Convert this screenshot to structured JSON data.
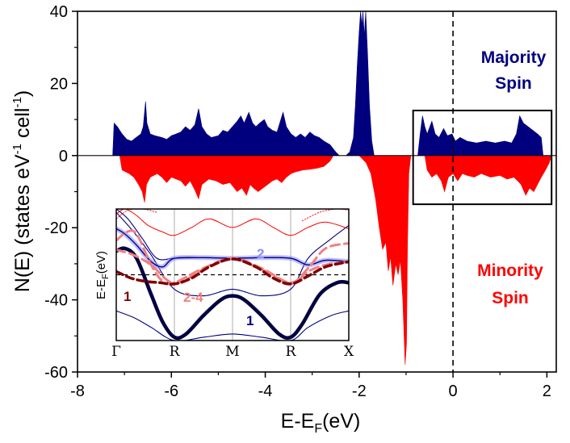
{
  "chart_data": {
    "type": "area",
    "xlabel": "E-E",
    "xlabel_sub": "F",
    "xlabel_tail": "(eV)",
    "ylabel_main": "N(E) (states eV",
    "ylabel_sup1": "-1",
    "ylabel_mid": " cell",
    "ylabel_sup2": "-1",
    "ylabel_tail": ")",
    "xlim": [
      -8,
      2.2
    ],
    "ylim": [
      -60,
      40
    ],
    "x_ticks": [
      -8,
      -6,
      -4,
      -2,
      0,
      2
    ],
    "x_tick_labels": [
      "-8",
      "-6",
      "-4",
      "-2",
      "0",
      "2"
    ],
    "y_ticks": [
      -60,
      -40,
      -20,
      0,
      20,
      40
    ],
    "y_tick_labels": [
      "-60",
      "-40",
      "-20",
      "0",
      "20",
      "40"
    ],
    "fermi_line_x": 0,
    "highlight_box": {
      "x": [
        -0.85,
        2.1
      ],
      "y": [
        -13.5,
        12.5
      ]
    },
    "annotations": {
      "majority_line1": "Majority",
      "majority_line2": "Spin",
      "minority_line1": "Minority",
      "minority_line2": "Spin"
    },
    "colors": {
      "majority": "#00007f",
      "minority": "#ff0000",
      "inset_light_blue": "#8a8aff",
      "inset_light_red": "#f08080",
      "inset_dark_red": "#7f0000"
    },
    "series": [
      {
        "name": "Majority Spin",
        "points": [
          [
            -8.0,
            0
          ],
          [
            -7.25,
            0
          ],
          [
            -7.22,
            9
          ],
          [
            -7.15,
            8
          ],
          [
            -7.05,
            6
          ],
          [
            -6.95,
            4.5
          ],
          [
            -6.85,
            4
          ],
          [
            -6.75,
            5
          ],
          [
            -6.65,
            6
          ],
          [
            -6.6,
            8
          ],
          [
            -6.55,
            15
          ],
          [
            -6.52,
            9
          ],
          [
            -6.45,
            6
          ],
          [
            -6.35,
            5.5
          ],
          [
            -6.2,
            5
          ],
          [
            -6.1,
            4.5
          ],
          [
            -6.0,
            5.5
          ],
          [
            -5.9,
            6
          ],
          [
            -5.8,
            6.5
          ],
          [
            -5.7,
            8
          ],
          [
            -5.6,
            7
          ],
          [
            -5.5,
            8.5
          ],
          [
            -5.42,
            13
          ],
          [
            -5.35,
            8
          ],
          [
            -5.25,
            6
          ],
          [
            -5.15,
            5
          ],
          [
            -5.0,
            5.5
          ],
          [
            -4.9,
            7
          ],
          [
            -4.8,
            6.5
          ],
          [
            -4.7,
            8
          ],
          [
            -4.6,
            9.5
          ],
          [
            -4.52,
            11
          ],
          [
            -4.45,
            9
          ],
          [
            -4.35,
            12
          ],
          [
            -4.27,
            9
          ],
          [
            -4.2,
            8
          ],
          [
            -4.12,
            9
          ],
          [
            -4.02,
            10
          ],
          [
            -3.95,
            8
          ],
          [
            -3.85,
            7
          ],
          [
            -3.75,
            6.5
          ],
          [
            -3.62,
            12
          ],
          [
            -3.55,
            8
          ],
          [
            -3.45,
            6
          ],
          [
            -3.35,
            5
          ],
          [
            -3.25,
            6
          ],
          [
            -3.15,
            5
          ],
          [
            -3.05,
            6.5
          ],
          [
            -2.95,
            5.5
          ],
          [
            -2.85,
            5
          ],
          [
            -2.75,
            4
          ],
          [
            -2.62,
            3
          ],
          [
            -2.5,
            1
          ],
          [
            -2.42,
            0
          ],
          [
            -2.28,
            0
          ],
          [
            -2.2,
            1
          ],
          [
            -2.12,
            5
          ],
          [
            -2.08,
            14
          ],
          [
            -2.04,
            25
          ],
          [
            -2.0,
            34
          ],
          [
            -1.97,
            40
          ],
          [
            -1.94,
            36
          ],
          [
            -1.92,
            40
          ],
          [
            -1.89,
            33
          ],
          [
            -1.86,
            40
          ],
          [
            -1.82,
            28
          ],
          [
            -1.78,
            14
          ],
          [
            -1.73,
            4
          ],
          [
            -1.68,
            0
          ],
          [
            -0.75,
            0
          ],
          [
            -0.7,
            6
          ],
          [
            -0.65,
            11
          ],
          [
            -0.6,
            8
          ],
          [
            -0.55,
            6
          ],
          [
            -0.45,
            9.5
          ],
          [
            -0.38,
            6
          ],
          [
            -0.3,
            5
          ],
          [
            -0.2,
            7.5
          ],
          [
            -0.12,
            5.5
          ],
          [
            -0.02,
            6
          ],
          [
            0.05,
            4
          ],
          [
            0.15,
            5
          ],
          [
            0.3,
            4
          ],
          [
            0.5,
            3.5
          ],
          [
            0.7,
            4
          ],
          [
            0.9,
            3.5
          ],
          [
            1.1,
            4
          ],
          [
            1.25,
            3.5
          ],
          [
            1.35,
            6
          ],
          [
            1.42,
            11
          ],
          [
            1.5,
            9
          ],
          [
            1.6,
            8
          ],
          [
            1.7,
            7
          ],
          [
            1.8,
            6
          ],
          [
            1.88,
            5
          ],
          [
            1.92,
            0
          ],
          [
            2.2,
            0
          ]
        ]
      },
      {
        "name": "Minority Spin",
        "points": [
          [
            -8.0,
            0
          ],
          [
            -7.1,
            0
          ],
          [
            -7.05,
            -4
          ],
          [
            -6.9,
            -5
          ],
          [
            -6.8,
            -6
          ],
          [
            -6.7,
            -8
          ],
          [
            -6.62,
            -10
          ],
          [
            -6.57,
            -13
          ],
          [
            -6.53,
            -8
          ],
          [
            -6.45,
            -6
          ],
          [
            -6.3,
            -5
          ],
          [
            -6.2,
            -6
          ],
          [
            -6.1,
            -7.5
          ],
          [
            -6.0,
            -6
          ],
          [
            -5.9,
            -6.5
          ],
          [
            -5.8,
            -7
          ],
          [
            -5.7,
            -8.5
          ],
          [
            -5.6,
            -7
          ],
          [
            -5.5,
            -9.5
          ],
          [
            -5.42,
            -12
          ],
          [
            -5.35,
            -8
          ],
          [
            -5.2,
            -6.5
          ],
          [
            -5.05,
            -7
          ],
          [
            -4.9,
            -8
          ],
          [
            -4.75,
            -7.5
          ],
          [
            -4.6,
            -10
          ],
          [
            -4.5,
            -9
          ],
          [
            -4.4,
            -11
          ],
          [
            -4.32,
            -8
          ],
          [
            -4.25,
            -9
          ],
          [
            -4.15,
            -10
          ],
          [
            -4.05,
            -9
          ],
          [
            -3.95,
            -8
          ],
          [
            -3.85,
            -7
          ],
          [
            -3.75,
            -6.5
          ],
          [
            -3.65,
            -7.5
          ],
          [
            -3.55,
            -6
          ],
          [
            -3.45,
            -5
          ],
          [
            -3.35,
            -4.5
          ],
          [
            -3.2,
            -4
          ],
          [
            -3.05,
            -3.8
          ],
          [
            -2.9,
            -3.5
          ],
          [
            -2.75,
            -3
          ],
          [
            -2.62,
            -1.5
          ],
          [
            -2.55,
            0
          ],
          [
            -2.0,
            0
          ],
          [
            -1.85,
            -2
          ],
          [
            -1.75,
            -5
          ],
          [
            -1.65,
            -12
          ],
          [
            -1.57,
            -20
          ],
          [
            -1.5,
            -26
          ],
          [
            -1.43,
            -24
          ],
          [
            -1.38,
            -32
          ],
          [
            -1.33,
            -28
          ],
          [
            -1.28,
            -36
          ],
          [
            -1.22,
            -30
          ],
          [
            -1.17,
            -33
          ],
          [
            -1.12,
            -29
          ],
          [
            -1.07,
            -40
          ],
          [
            -1.02,
            -58
          ],
          [
            -0.99,
            -52
          ],
          [
            -0.97,
            -25
          ],
          [
            -0.94,
            -5
          ],
          [
            -0.9,
            0
          ],
          [
            -0.6,
            0
          ],
          [
            -0.55,
            -4
          ],
          [
            -0.45,
            -6
          ],
          [
            -0.35,
            -5
          ],
          [
            -0.25,
            -7
          ],
          [
            -0.18,
            -10
          ],
          [
            -0.1,
            -6
          ],
          [
            0.0,
            -5
          ],
          [
            0.1,
            -7
          ],
          [
            0.2,
            -5
          ],
          [
            0.3,
            -5.5
          ],
          [
            0.45,
            -6
          ],
          [
            0.6,
            -5
          ],
          [
            0.8,
            -6
          ],
          [
            1.0,
            -5.5
          ],
          [
            1.15,
            -6.5
          ],
          [
            1.3,
            -6
          ],
          [
            1.45,
            -8
          ],
          [
            1.55,
            -11
          ],
          [
            1.63,
            -9
          ],
          [
            1.72,
            -10
          ],
          [
            1.8,
            -8
          ],
          [
            1.88,
            -6
          ],
          [
            1.97,
            -4
          ],
          [
            2.05,
            -2
          ],
          [
            2.1,
            0
          ],
          [
            2.2,
            0
          ]
        ]
      }
    ],
    "inset": {
      "type": "line",
      "ylabel": "E-E",
      "ylabel_sub": "F",
      "ylabel_tail": "(eV)",
      "k_ticks": [
        0,
        1,
        2,
        3,
        4
      ],
      "k_tick_labels": [
        "Γ",
        "R",
        "M",
        "R",
        "X"
      ],
      "ylim": [
        -1.0,
        1.0
      ],
      "fermi_level": 0,
      "labels": {
        "band1_dark": "1",
        "band1_blue": "1",
        "band2": "2",
        "band24": "2-4"
      },
      "bands": [
        {
          "style": "thin-blue",
          "k": [
            0,
            0.3,
            0.6,
            1,
            1.5,
            2,
            2.5,
            3,
            3.3,
            3.7,
            4
          ],
          "e": [
            0.95,
            0.65,
            0.3,
            -0.22,
            -0.32,
            -0.22,
            -0.32,
            -0.22,
            0.25,
            0.55,
            0.75
          ]
        },
        {
          "style": "thin-blue",
          "k": [
            0,
            0.3,
            0.6,
            1,
            1.5,
            2,
            2.5,
            3,
            3.3,
            3.7,
            4
          ],
          "e": [
            -0.55,
            -0.65,
            -0.8,
            -1.0,
            -0.95,
            -0.9,
            -0.95,
            -1.0,
            -0.8,
            -0.62,
            -0.55
          ]
        },
        {
          "style": "thin-blue",
          "k": [
            0,
            0.2,
            0.45,
            0.7,
            1,
            1.5,
            2,
            2.5,
            3,
            3.3,
            3.6,
            4
          ],
          "e": [
            1.0,
            0.85,
            0.55,
            0.25,
            0.25,
            0.26,
            0.25,
            0.26,
            0.25,
            0.15,
            0.22,
            0.2
          ]
        },
        {
          "style": "glow-blue",
          "k": [
            0,
            0.15,
            0.35,
            0.6,
            0.8,
            1,
            1.5,
            2,
            2.5,
            3,
            3.3,
            3.6,
            4
          ],
          "e": [
            0.7,
            0.62,
            0.45,
            0.2,
            0.12,
            0.25,
            0.26,
            0.25,
            0.26,
            0.25,
            0.15,
            0.22,
            0.2
          ]
        },
        {
          "style": "thick-dark",
          "k": [
            0,
            0.15,
            0.35,
            0.6,
            0.8,
            1,
            1.2,
            1.5,
            1.8,
            2,
            2.2,
            2.5,
            2.8,
            3,
            3.2,
            3.5,
            3.8,
            4
          ],
          "e": [
            0.36,
            0.4,
            0.25,
            -0.3,
            -0.72,
            -0.95,
            -0.9,
            -0.62,
            -0.38,
            -0.32,
            -0.38,
            -0.62,
            -0.9,
            -0.95,
            -0.75,
            -0.3,
            -0.12,
            -0.12
          ]
        },
        {
          "style": "thin-red",
          "k": [
            0,
            0.15,
            0.35,
            0.55,
            0.8,
            1,
            1.3,
            1.6,
            2,
            2.4,
            2.7,
            3,
            3.3,
            3.6,
            4
          ],
          "e": [
            0.92,
            1.0,
            0.9,
            0.75,
            0.65,
            0.6,
            0.72,
            0.85,
            0.72,
            0.85,
            0.72,
            0.6,
            0.72,
            0.8,
            0.7
          ]
        },
        {
          "style": "thin-red-dotted",
          "k": [
            0,
            0.2,
            0.45,
            0.7
          ],
          "e": [
            0.85,
            0.98,
            1.0,
            0.95
          ]
        },
        {
          "style": "thin-red-dotted",
          "k": [
            3.2,
            3.5,
            3.8,
            4
          ],
          "e": [
            0.82,
            0.95,
            1.0,
            0.98
          ]
        },
        {
          "style": "dash-lightred",
          "k": [
            0,
            0.18,
            0.35,
            0.6,
            0.8,
            1,
            1.5,
            2,
            2.5,
            3,
            3.3,
            3.6,
            4
          ],
          "e": [
            0.52,
            0.65,
            0.62,
            0.15,
            -0.1,
            -0.12,
            0.1,
            0.25,
            0.1,
            -0.12,
            0.1,
            0.4,
            0.48
          ]
        },
        {
          "style": "dash-lightred",
          "k": [
            0,
            0.3,
            0.6,
            1,
            1.5,
            2,
            2.5,
            3,
            3.3,
            3.6,
            4
          ],
          "e": [
            0.38,
            0.3,
            0.15,
            -0.13,
            0.08,
            0.24,
            0.08,
            -0.13,
            0.05,
            0.15,
            0.2
          ]
        },
        {
          "style": "dash-darkred",
          "k": [
            0,
            0.25,
            0.5,
            0.75,
            1,
            1.3,
            1.6,
            2,
            2.4,
            2.7,
            3,
            3.3,
            3.6,
            4
          ],
          "e": [
            0.05,
            -0.05,
            -0.1,
            -0.12,
            -0.14,
            -0.05,
            0.12,
            0.24,
            0.12,
            -0.05,
            -0.14,
            -0.02,
            0.12,
            0.2
          ]
        }
      ]
    }
  }
}
